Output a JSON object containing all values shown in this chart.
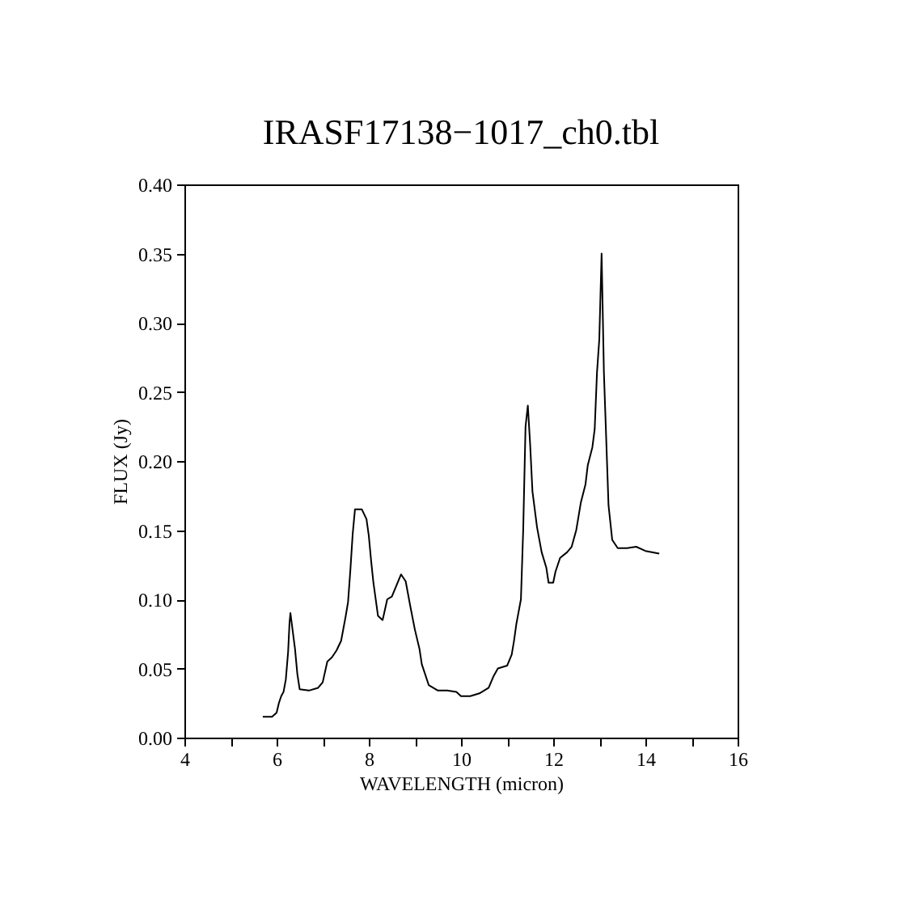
{
  "chart_data": {
    "type": "line",
    "title": "IRASF17138−1017_ch0.tbl",
    "xlabel": "WAVELENGTH (micron)",
    "ylabel": "FLUX (Jy)",
    "xlim": [
      4,
      16
    ],
    "xticks": [
      4,
      {
        "value": 5,
        "label": null
      },
      6,
      {
        "value": 7,
        "label": null
      },
      8,
      {
        "value": 9,
        "label": null
      },
      10,
      {
        "value": 11,
        "label": null
      },
      12,
      {
        "value": 13,
        "label": null
      },
      14,
      {
        "value": 15,
        "label": null
      },
      16
    ],
    "ylim": [
      0,
      0.4
    ],
    "yticks": [
      {
        "value": 0,
        "label": "0.00"
      },
      {
        "value": 0.05,
        "label": "0.05"
      },
      {
        "value": 0.1,
        "label": "0.10"
      },
      {
        "value": 0.15,
        "label": "0.15"
      },
      {
        "value": 0.2,
        "label": "0.20"
      },
      {
        "value": 0.25,
        "label": "0.25"
      },
      {
        "value": 0.3,
        "label": "0.30"
      },
      {
        "value": 0.35,
        "label": "0.35"
      },
      {
        "value": 0.4,
        "label": "0.40"
      }
    ],
    "grid": false,
    "marker": "none",
    "line_style": "solid",
    "series": [
      {
        "color": "#000000",
        "x": [
          5.7,
          5.9,
          6.0,
          6.05,
          6.1,
          6.15,
          6.2,
          6.25,
          6.28,
          6.3,
          6.35,
          6.4,
          6.45,
          6.5,
          6.7,
          6.9,
          7.0,
          7.1,
          7.2,
          7.3,
          7.4,
          7.5,
          7.55,
          7.6,
          7.65,
          7.7,
          7.85,
          7.95,
          8.0,
          8.05,
          8.1,
          8.2,
          8.3,
          8.4,
          8.5,
          8.6,
          8.7,
          8.8,
          8.9,
          9.0,
          9.1,
          9.15,
          9.2,
          9.3,
          9.5,
          9.7,
          9.9,
          10.0,
          10.2,
          10.4,
          10.6,
          10.7,
          10.8,
          11.0,
          11.1,
          11.15,
          11.2,
          11.3,
          11.35,
          11.4,
          11.45,
          11.5,
          11.55,
          11.65,
          11.75,
          11.85,
          11.9,
          12.0,
          12.05,
          12.15,
          12.3,
          12.4,
          12.5,
          12.55,
          12.6,
          12.7,
          12.75,
          12.85,
          12.9,
          12.95,
          13.0,
          13.05,
          13.1,
          13.2,
          13.28,
          13.4,
          13.6,
          13.8,
          14.0,
          14.3
        ],
        "values": [
          0.015,
          0.015,
          0.018,
          0.025,
          0.03,
          0.033,
          0.042,
          0.062,
          0.083,
          0.09,
          0.077,
          0.064,
          0.046,
          0.035,
          0.034,
          0.036,
          0.04,
          0.055,
          0.058,
          0.063,
          0.07,
          0.088,
          0.098,
          0.121,
          0.147,
          0.165,
          0.165,
          0.158,
          0.146,
          0.128,
          0.112,
          0.088,
          0.085,
          0.1,
          0.102,
          0.11,
          0.118,
          0.113,
          0.095,
          0.078,
          0.064,
          0.053,
          0.048,
          0.038,
          0.034,
          0.034,
          0.033,
          0.03,
          0.03,
          0.032,
          0.036,
          0.044,
          0.05,
          0.052,
          0.06,
          0.07,
          0.082,
          0.1,
          0.151,
          0.225,
          0.24,
          0.212,
          0.178,
          0.152,
          0.134,
          0.123,
          0.112,
          0.112,
          0.12,
          0.13,
          0.134,
          0.138,
          0.15,
          0.16,
          0.17,
          0.183,
          0.197,
          0.21,
          0.223,
          0.264,
          0.288,
          0.35,
          0.264,
          0.168,
          0.143,
          0.137,
          0.137,
          0.138,
          0.135,
          0.133
        ]
      }
    ]
  }
}
